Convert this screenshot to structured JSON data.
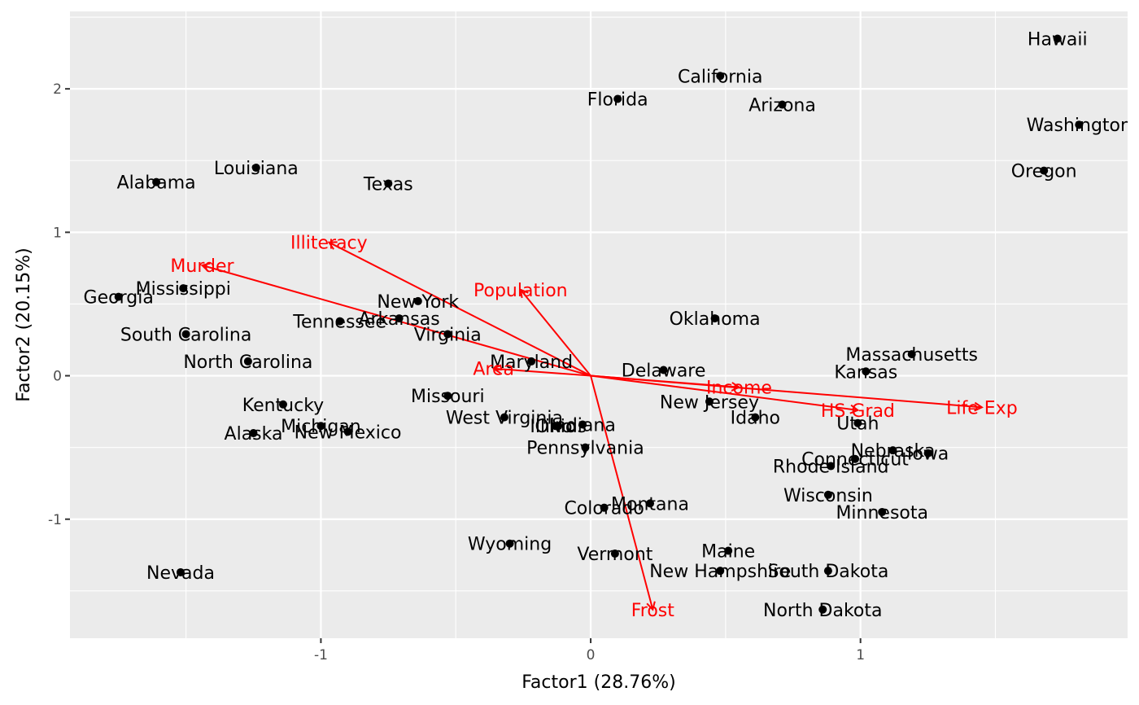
{
  "chart_data": {
    "type": "scatter",
    "title": "",
    "xlabel": "Factor1 (28.76%)",
    "ylabel": "Factor2 (20.15%)",
    "xlim": [
      -1.93,
      1.99
    ],
    "ylim": [
      -1.83,
      2.54
    ],
    "x_ticks": [
      -1,
      0,
      1
    ],
    "y_ticks": [
      -1,
      0,
      1,
      2
    ],
    "x_tick_labels": [
      "-1",
      "0",
      "1"
    ],
    "y_tick_labels": [
      "-1",
      "0",
      "1",
      "2"
    ],
    "grid": true,
    "panel_color": "#ebebeb",
    "grid_color": "#ffffff",
    "point_color": "#000000",
    "arrow_color": "#ff0000",
    "points": [
      {
        "name": "Alabama",
        "x": -1.61,
        "y": 1.35
      },
      {
        "name": "Alaska",
        "x": -1.25,
        "y": -0.4
      },
      {
        "name": "Arizona",
        "x": 0.71,
        "y": 1.89
      },
      {
        "name": "Arkansas",
        "x": -0.71,
        "y": 0.4
      },
      {
        "name": "California",
        "x": 0.48,
        "y": 2.09
      },
      {
        "name": "Colorado",
        "x": 0.05,
        "y": -0.92
      },
      {
        "name": "Connecticut",
        "x": 0.98,
        "y": -0.58
      },
      {
        "name": "Delaware",
        "x": 0.27,
        "y": 0.04
      },
      {
        "name": "Florida",
        "x": 0.1,
        "y": 1.93
      },
      {
        "name": "Georgia",
        "x": -1.75,
        "y": 0.55
      },
      {
        "name": "Hawaii",
        "x": 1.73,
        "y": 2.35
      },
      {
        "name": "Idaho",
        "x": 0.61,
        "y": -0.29
      },
      {
        "name": "Illinois",
        "x": -0.12,
        "y": -0.35
      },
      {
        "name": "Indiana",
        "x": -0.03,
        "y": -0.34
      },
      {
        "name": "Iowa",
        "x": 1.25,
        "y": -0.54
      },
      {
        "name": "Kansas",
        "x": 1.02,
        "y": 0.03
      },
      {
        "name": "Kentucky",
        "x": -1.14,
        "y": -0.2
      },
      {
        "name": "Louisiana",
        "x": -1.24,
        "y": 1.45
      },
      {
        "name": "Maine",
        "x": 0.51,
        "y": -1.22
      },
      {
        "name": "Maryland",
        "x": -0.22,
        "y": 0.1
      },
      {
        "name": "Massachusetts",
        "x": 1.19,
        "y": 0.15
      },
      {
        "name": "Michigan",
        "x": -1.0,
        "y": -0.35
      },
      {
        "name": "Minnesota",
        "x": 1.08,
        "y": -0.95
      },
      {
        "name": "Mississippi",
        "x": -1.51,
        "y": 0.61
      },
      {
        "name": "Missouri",
        "x": -0.53,
        "y": -0.14
      },
      {
        "name": "Montana",
        "x": 0.22,
        "y": -0.89
      },
      {
        "name": "Nebraska",
        "x": 1.12,
        "y": -0.52
      },
      {
        "name": "Nevada",
        "x": -1.52,
        "y": -1.37
      },
      {
        "name": "New Hampshire",
        "x": 0.48,
        "y": -1.36
      },
      {
        "name": "New Jersey",
        "x": 0.44,
        "y": -0.18
      },
      {
        "name": "New Mexico",
        "x": -0.9,
        "y": -0.39
      },
      {
        "name": "New York",
        "x": -0.64,
        "y": 0.52
      },
      {
        "name": "North Carolina",
        "x": -1.27,
        "y": 0.1
      },
      {
        "name": "North Dakota",
        "x": 0.86,
        "y": -1.63
      },
      {
        "name": "Ohio",
        "x": -0.13,
        "y": -0.35
      },
      {
        "name": "Oklahoma",
        "x": 0.46,
        "y": 0.4
      },
      {
        "name": "Oregon",
        "x": 1.68,
        "y": 1.43
      },
      {
        "name": "Pennsylvania",
        "x": -0.02,
        "y": -0.5
      },
      {
        "name": "Rhode Island",
        "x": 0.89,
        "y": -0.63
      },
      {
        "name": "South Carolina",
        "x": -1.5,
        "y": 0.29
      },
      {
        "name": "South Dakota",
        "x": 0.88,
        "y": -1.36
      },
      {
        "name": "Tennessee",
        "x": -0.93,
        "y": 0.38
      },
      {
        "name": "Texas",
        "x": -0.75,
        "y": 1.34
      },
      {
        "name": "Utah",
        "x": 0.99,
        "y": -0.33
      },
      {
        "name": "Vermont",
        "x": 0.09,
        "y": -1.24
      },
      {
        "name": "Virginia",
        "x": -0.53,
        "y": 0.29
      },
      {
        "name": "Washington",
        "x": 1.81,
        "y": 1.75
      },
      {
        "name": "West Virginia",
        "x": -0.32,
        "y": -0.29
      },
      {
        "name": "Wisconsin",
        "x": 0.88,
        "y": -0.83
      },
      {
        "name": "Wyoming",
        "x": -0.3,
        "y": -1.17
      }
    ],
    "loadings": [
      {
        "name": "Population",
        "x": -0.26,
        "y": 0.6
      },
      {
        "name": "Income",
        "x": 0.55,
        "y": -0.08
      },
      {
        "name": "Illiteracy",
        "x": -0.97,
        "y": 0.93
      },
      {
        "name": "Life Exp",
        "x": 1.45,
        "y": -0.22
      },
      {
        "name": "Murder",
        "x": -1.44,
        "y": 0.77
      },
      {
        "name": "HS Grad",
        "x": 0.99,
        "y": -0.24
      },
      {
        "name": "Frost",
        "x": 0.23,
        "y": -1.63
      },
      {
        "name": "Area",
        "x": -0.36,
        "y": 0.05
      }
    ]
  }
}
